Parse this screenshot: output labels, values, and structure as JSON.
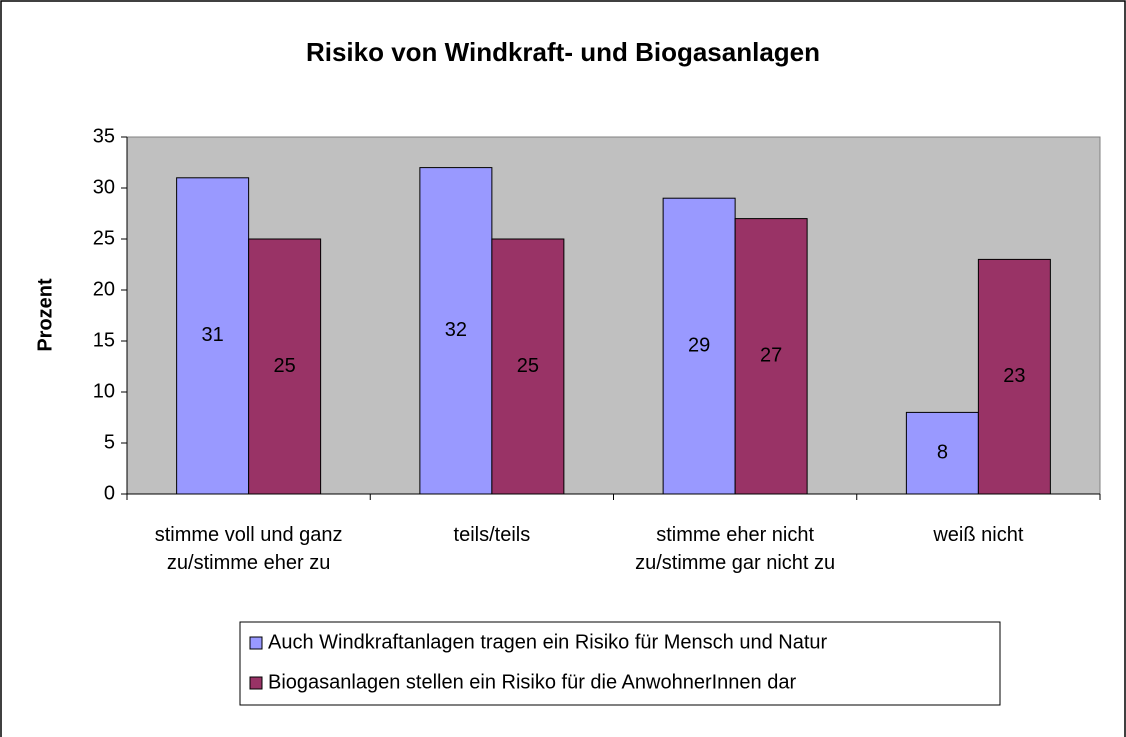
{
  "chart_data": {
    "type": "bar",
    "title": "Risiko von Windkraft- und Biogasanlagen",
    "y_label": "Prozent",
    "categories": [
      "stimme voll und ganz zu/stimme eher zu",
      "teils/teils",
      "stimme eher nicht zu/stimme gar nicht zu",
      "weiß nicht"
    ],
    "series": [
      {
        "name": "Auch Windkraftanlagen tragen ein Risiko für Mensch und Natur",
        "color": "#9999ff",
        "values": [
          31,
          32,
          29,
          8
        ]
      },
      {
        "name": "Biogasanlagen stellen ein Risiko für die AnwohnerInnen dar",
        "color": "#993366",
        "values": [
          25,
          25,
          27,
          23
        ]
      }
    ],
    "ylim": [
      0,
      35
    ],
    "yticks": [
      0,
      5,
      10,
      15,
      20,
      25,
      30,
      35
    ],
    "grid": false,
    "legend": "bottom"
  }
}
